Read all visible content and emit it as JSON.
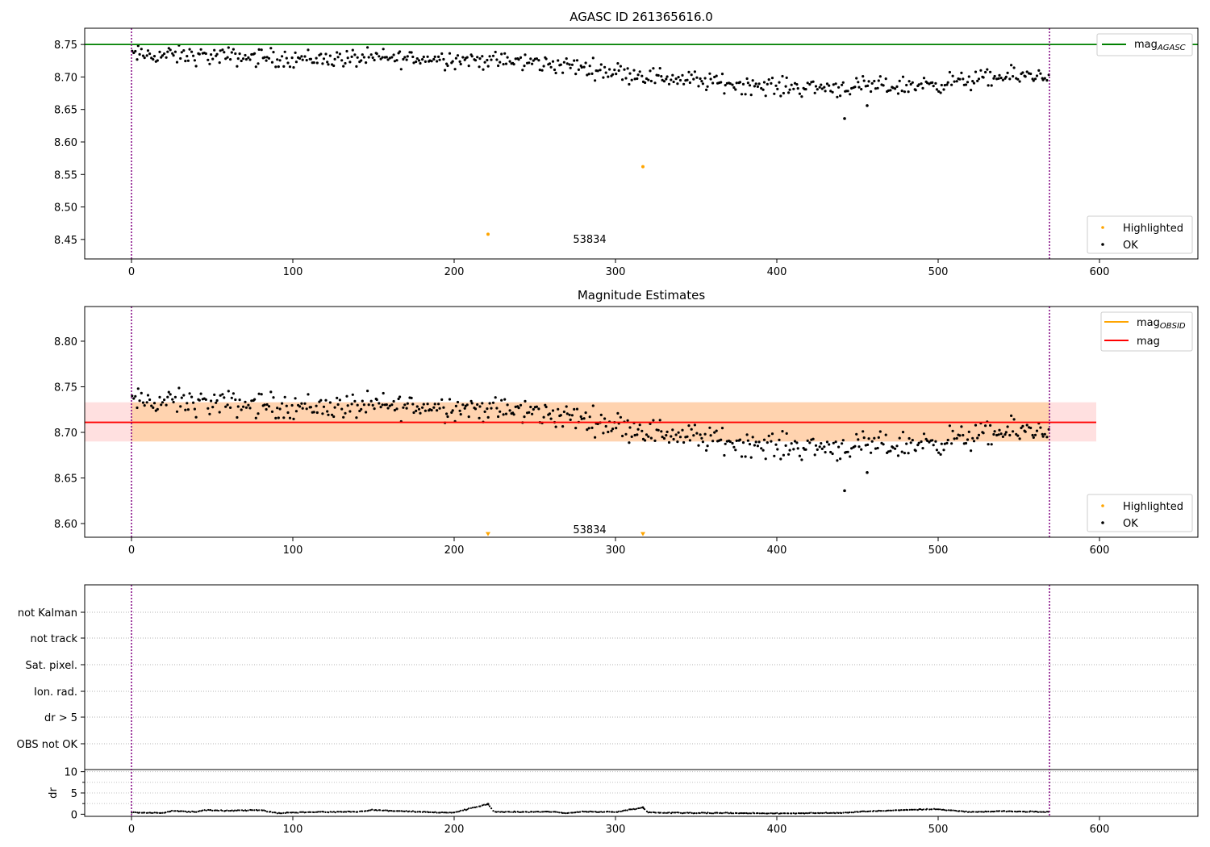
{
  "chart_data": [
    {
      "type": "scatter",
      "title": "AGASC ID 261365616.0",
      "xlim": [
        -29,
        661
      ],
      "ylim": [
        8.42,
        8.775
      ],
      "x_ticks": [
        0,
        100,
        200,
        300,
        400,
        500,
        600
      ],
      "y_ticks": [
        8.45,
        8.5,
        8.55,
        8.6,
        8.65,
        8.7,
        8.75
      ],
      "y_tick_labels": [
        "8.45",
        "8.50",
        "8.55",
        "8.60",
        "8.65",
        "8.70",
        "8.75"
      ],
      "hlines": [
        {
          "name": "mag_AGASC",
          "y": 8.75,
          "color": "#008000"
        }
      ],
      "vlines": [
        {
          "x": 0,
          "color": "#800080"
        },
        {
          "x": 569,
          "color": "#800080"
        }
      ],
      "annotation": {
        "text": "53834",
        "x": 284,
        "y": 8.44
      },
      "legend_lines": [
        {
          "label": "mag",
          "subscript": "AGASC",
          "color": "#008000"
        }
      ],
      "legend_markers": [
        {
          "label": "Highlighted",
          "color": "#FFA500"
        },
        {
          "label": "OK",
          "color": "#000000"
        }
      ],
      "series": [
        {
          "name": "OK",
          "color": "#000000",
          "trend": [
            [
              0,
              8.734
            ],
            [
              30,
              8.733
            ],
            [
              80,
              8.73
            ],
            [
              120,
              8.728
            ],
            [
              160,
              8.729
            ],
            [
              200,
              8.728
            ],
            [
              250,
              8.722
            ],
            [
              280,
              8.715
            ],
            [
              320,
              8.702
            ],
            [
              360,
              8.692
            ],
            [
              400,
              8.685
            ],
            [
              440,
              8.684
            ],
            [
              480,
              8.686
            ],
            [
              520,
              8.695
            ],
            [
              569,
              8.705
            ]
          ],
          "n": 569,
          "spread": 0.007,
          "outliers": [
            [
              442,
              8.636
            ],
            [
              456,
              8.656
            ]
          ]
        },
        {
          "name": "Highlighted",
          "color": "#FFA500",
          "points": [
            [
              221,
              8.458
            ],
            [
              317,
              8.562
            ]
          ]
        }
      ]
    },
    {
      "type": "scatter",
      "title": "Magnitude Estimates",
      "xlim": [
        -29,
        661
      ],
      "ylim": [
        8.585,
        8.838
      ],
      "x_ticks": [
        0,
        100,
        200,
        300,
        400,
        500,
        600
      ],
      "y_ticks": [
        8.6,
        8.65,
        8.7,
        8.75,
        8.8
      ],
      "y_tick_labels": [
        "8.60",
        "8.65",
        "8.70",
        "8.75",
        "8.80"
      ],
      "mag": 8.711,
      "mag_band": [
        8.69,
        8.733
      ],
      "mag_obsid_bands": [
        {
          "x0": 0,
          "x1": 280,
          "y0": 8.69,
          "y1": 8.733
        },
        {
          "x0": 280,
          "x1": 569,
          "y0": 8.69,
          "y1": 8.733
        }
      ],
      "vlines": [
        {
          "x": 0,
          "color": "#800080"
        },
        {
          "x": 569,
          "color": "#800080"
        }
      ],
      "annotation": {
        "text": "53834",
        "x": 284,
        "y": 8.594
      },
      "legend_lines": [
        {
          "label": "mag",
          "subscript": "OBSID",
          "color": "#FFA500"
        },
        {
          "label": "mag",
          "subscript": "",
          "color": "#FF0000"
        }
      ],
      "legend_markers": [
        {
          "label": "Highlighted",
          "color": "#FFA500"
        },
        {
          "label": "OK",
          "color": "#000000"
        }
      ],
      "highlighted_triangles": [
        [
          221,
          8.588
        ],
        [
          317,
          8.588
        ]
      ]
    },
    {
      "type": "scatter",
      "flags": [
        "not Kalman",
        "not track",
        "Sat. pixel.",
        "Ion. rad.",
        "dr > 5",
        "OBS not OK"
      ],
      "dr": {
        "ylabel": "dr",
        "ylim": [
          -0.5,
          10.5
        ],
        "y_ticks": [
          0,
          5,
          10
        ],
        "y_tick_labels": [
          "0",
          "5",
          "10"
        ],
        "trend": [
          [
            0,
            0.4
          ],
          [
            20,
            0.3
          ],
          [
            25,
            0.8
          ],
          [
            40,
            0.5
          ],
          [
            45,
            1.0
          ],
          [
            60,
            0.8
          ],
          [
            80,
            1.0
          ],
          [
            90,
            0.3
          ],
          [
            110,
            0.5
          ],
          [
            140,
            0.6
          ],
          [
            150,
            1.0
          ],
          [
            180,
            0.5
          ],
          [
            200,
            0.4
          ],
          [
            221,
            2.4
          ],
          [
            225,
            0.5
          ],
          [
            262,
            0.6
          ],
          [
            268,
            0.2
          ],
          [
            280,
            0.6
          ],
          [
            300,
            0.5
          ],
          [
            317,
            1.6
          ],
          [
            320,
            0.4
          ],
          [
            360,
            0.3
          ],
          [
            400,
            0.2
          ],
          [
            440,
            0.3
          ],
          [
            450,
            0.6
          ],
          [
            480,
            1.0
          ],
          [
            500,
            1.2
          ],
          [
            520,
            0.5
          ],
          [
            540,
            0.7
          ],
          [
            569,
            0.5
          ]
        ]
      },
      "x_ticks": [
        0,
        100,
        200,
        300,
        400,
        500,
        600
      ],
      "xlim": [
        -29,
        661
      ]
    }
  ]
}
